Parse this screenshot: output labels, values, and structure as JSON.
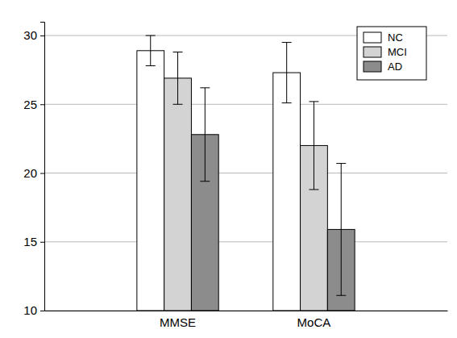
{
  "chart_data": {
    "type": "bar",
    "categories": [
      "MMSE",
      "MoCA"
    ],
    "series": [
      {
        "name": "NC",
        "color": "#ffffff",
        "values": [
          28.9,
          27.3
        ],
        "errors": [
          1.1,
          2.2
        ]
      },
      {
        "name": "MCI",
        "color": "#d3d3d3",
        "values": [
          26.9,
          22.0
        ],
        "errors": [
          1.9,
          3.2
        ]
      },
      {
        "name": "AD",
        "color": "#8c8c8c",
        "values": [
          22.8,
          15.9
        ],
        "errors": [
          3.4,
          4.8
        ]
      }
    ],
    "ylim": [
      10,
      31
    ],
    "yticks": [
      10,
      15,
      20,
      25,
      30
    ],
    "grid": true,
    "legend": "upper right"
  }
}
